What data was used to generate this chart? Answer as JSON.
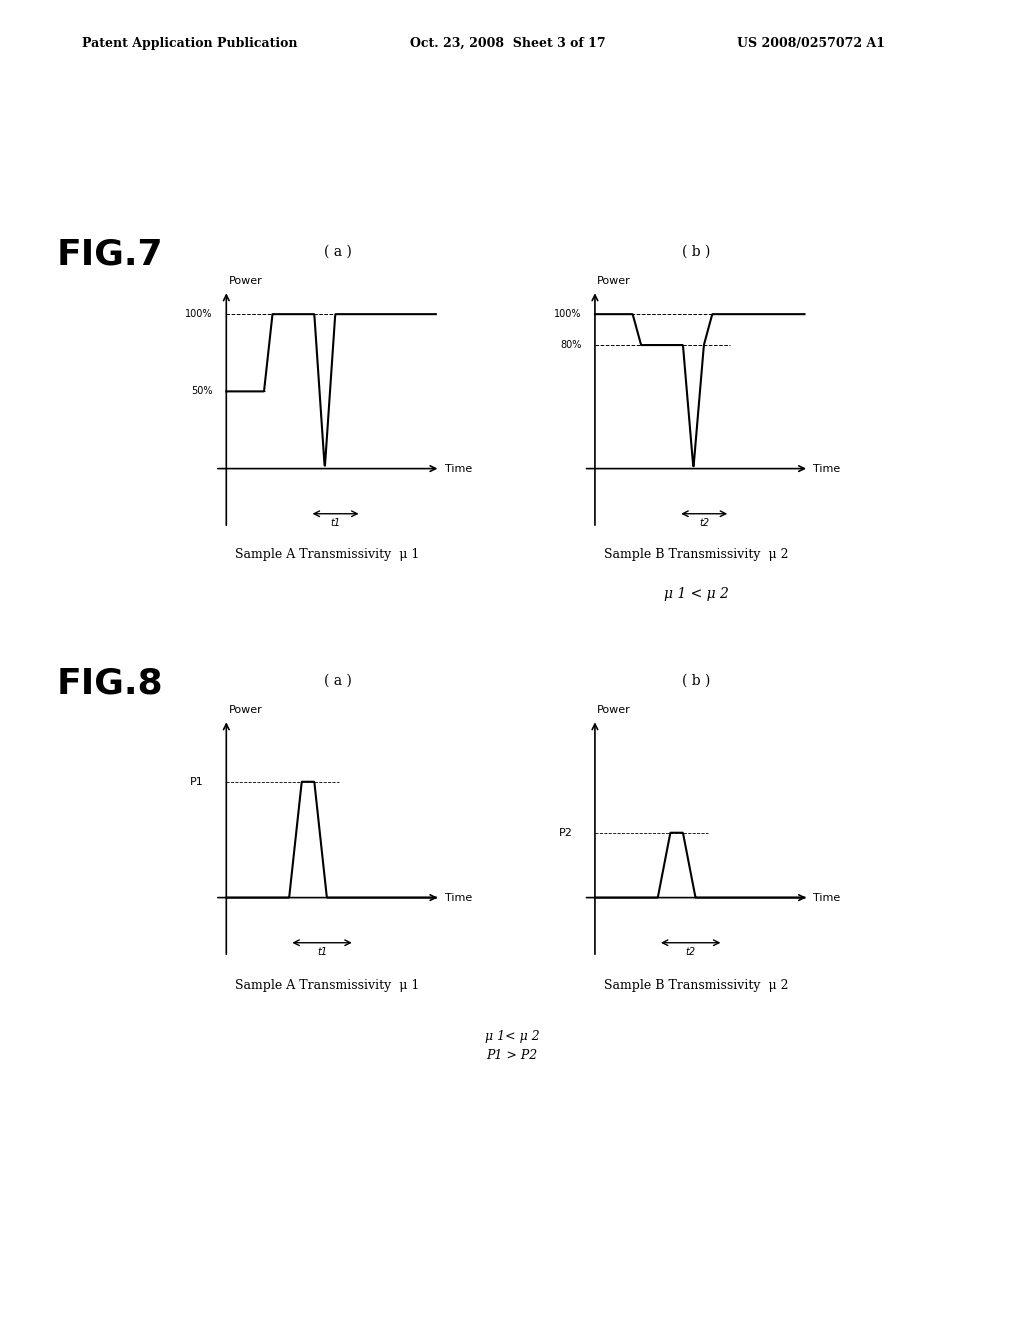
{
  "header_left": "Patent Application Publication",
  "header_mid": "Oct. 23, 2008  Sheet 3 of 17",
  "header_right": "US 2008/0257072 A1",
  "fig7_label": "FIG.7",
  "fig8_label": "FIG.8",
  "fig7a_sub": "( a )",
  "fig7b_sub": "( b )",
  "fig8a_sub": "( a )",
  "fig8b_sub": "( b )",
  "fig7a_caption": "Sample A Transmissivity  μ 1",
  "fig7b_caption": "Sample B Transmissivity  μ 2",
  "fig7_relation": "μ 1 < μ 2",
  "fig8a_caption": "Sample A Transmissivity  μ 1",
  "fig8b_caption": "Sample B Transmissivity  μ 2",
  "fig8_relation": "μ 1< μ 2\nP1 > P2",
  "background_color": "#ffffff",
  "line_color": "#000000"
}
